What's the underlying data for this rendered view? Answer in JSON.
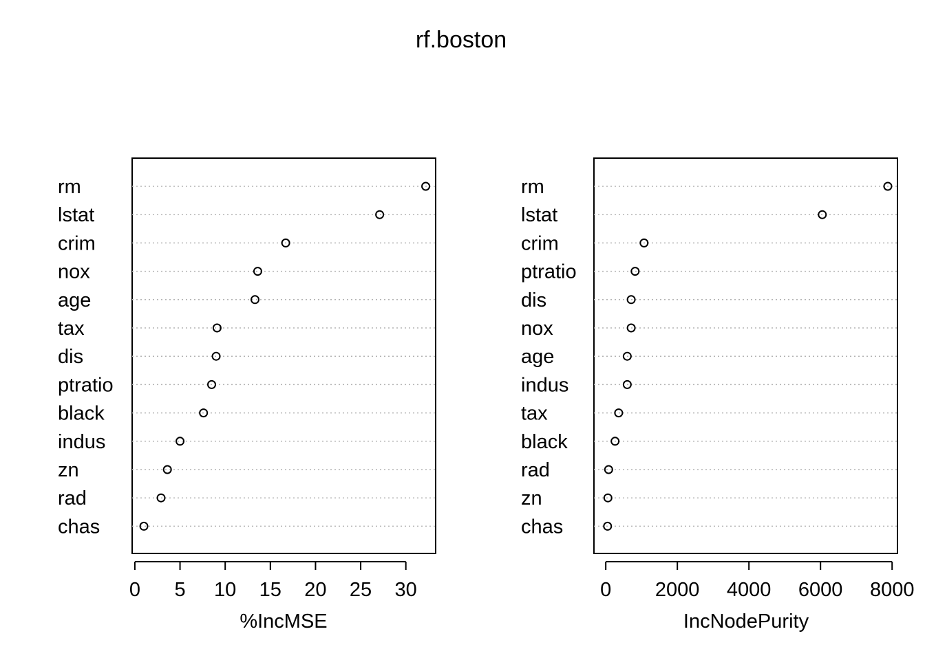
{
  "title": "rf.boston",
  "chart_data": [
    {
      "type": "scatter",
      "subtype": "dotchart",
      "xlabel": "%IncMSE",
      "xticks": [
        0,
        5,
        10,
        15,
        20,
        25,
        30
      ],
      "xlim": [
        -0.3,
        33.3
      ],
      "grid": "dotted horizontal lines per variable",
      "categories": [
        "rm",
        "lstat",
        "crim",
        "nox",
        "age",
        "tax",
        "dis",
        "ptratio",
        "black",
        "indus",
        "zn",
        "rad",
        "chas"
      ],
      "values": [
        32.2,
        27.1,
        16.7,
        13.6,
        13.3,
        9.1,
        9.0,
        8.5,
        7.6,
        5.0,
        3.6,
        2.9,
        1.0
      ]
    },
    {
      "type": "scatter",
      "subtype": "dotchart",
      "xlabel": "IncNodePurity",
      "xticks": [
        0,
        2000,
        4000,
        6000,
        8000
      ],
      "xlim": [
        -330,
        8150
      ],
      "grid": "dotted horizontal lines per variable",
      "categories": [
        "rm",
        "lstat",
        "crim",
        "ptratio",
        "dis",
        "nox",
        "age",
        "indus",
        "tax",
        "black",
        "rad",
        "zn",
        "chas"
      ],
      "values": [
        7880,
        6050,
        1070,
        820,
        710,
        710,
        600,
        600,
        360,
        260,
        80,
        60,
        50
      ]
    }
  ]
}
